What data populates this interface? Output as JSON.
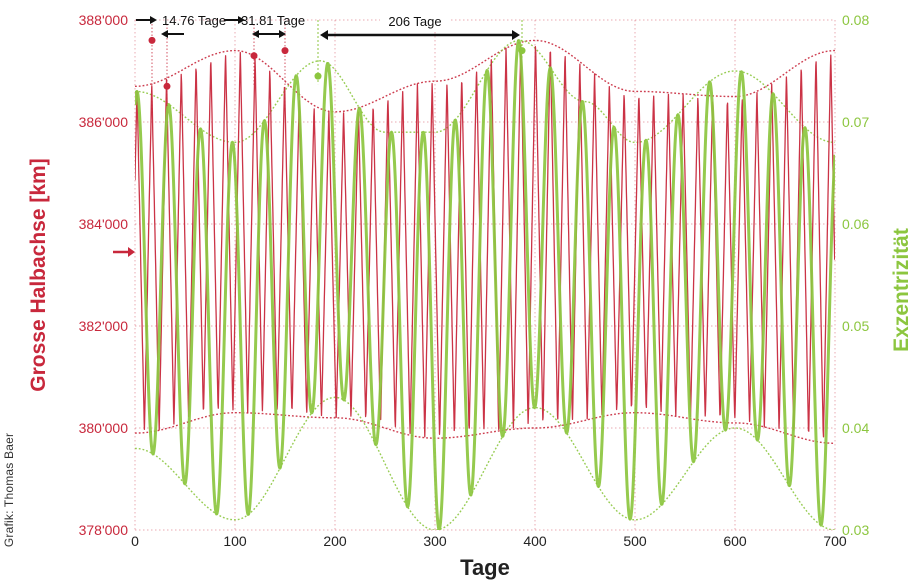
{
  "chart_data": {
    "type": "line",
    "xlabel": "Tage",
    "ylabel_left": "Grosse Halbachse [km]",
    "ylabel_right": "Exzentrizität",
    "xlim": [
      0,
      700
    ],
    "ylim_left": [
      378000,
      388000
    ],
    "ylim_right": [
      0.03,
      0.08
    ],
    "x_ticks": [
      "0",
      "100",
      "200",
      "300",
      "400",
      "500",
      "600",
      "700"
    ],
    "y_left_ticks": [
      "378'000",
      "380'000",
      "382'000",
      "384'000",
      "386'000",
      "388'000"
    ],
    "y_right_ticks": [
      "0.03",
      "0.04",
      "0.05",
      "0.06",
      "0.07",
      "0.08"
    ],
    "grid": true,
    "series": [
      {
        "axis": "left",
        "color": "#c8283c",
        "period_days": 14.76,
        "upper_envelope": {
          "x": [
            0,
            100,
            200,
            300,
            400,
            500,
            600,
            700
          ],
          "y": [
            386700,
            387400,
            386200,
            386800,
            387600,
            386600,
            386500,
            387400
          ]
        },
        "lower_envelope": {
          "x": [
            0,
            100,
            200,
            300,
            400,
            500,
            600,
            700
          ],
          "y": [
            379900,
            380300,
            380200,
            379800,
            380000,
            380300,
            380100,
            379700
          ]
        }
      },
      {
        "axis": "right",
        "color": "#8cc63f",
        "period_days": 31.81,
        "upper_envelope": {
          "x": [
            0,
            100,
            185,
            250,
            300,
            385,
            450,
            500,
            600,
            700
          ],
          "y": [
            0.073,
            0.068,
            0.076,
            0.069,
            0.069,
            0.078,
            0.072,
            0.068,
            0.075,
            0.068
          ]
        },
        "lower_envelope": {
          "x": [
            0,
            100,
            200,
            300,
            400,
            500,
            600,
            700
          ],
          "y": [
            0.038,
            0.031,
            0.043,
            0.03,
            0.042,
            0.031,
            0.04,
            0.03
          ]
        }
      }
    ],
    "annotations": [
      {
        "text": "14.76 Tage"
      },
      {
        "text": "31.81 Tage"
      },
      {
        "text": "206 Tage"
      }
    ],
    "credit": "Grafik: Thomas Baer"
  },
  "colors": {
    "axis_left": "#c8283c",
    "axis_right": "#8cc63f",
    "grid": "#c8283c"
  }
}
